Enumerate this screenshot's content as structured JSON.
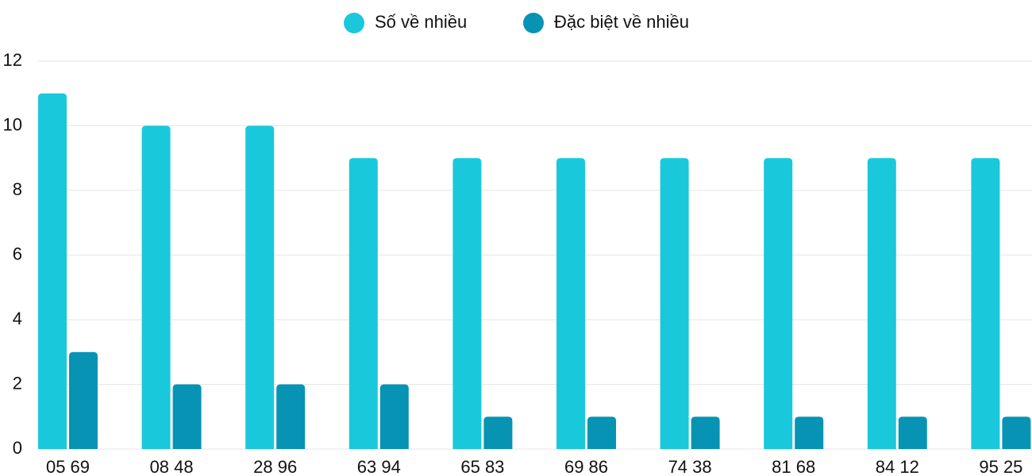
{
  "chart_data": {
    "type": "bar",
    "categories": [
      "05 69",
      "08 48",
      "28 96",
      "63 94",
      "65 83",
      "69 86",
      "74 38",
      "81 68",
      "84 12",
      "95 25"
    ],
    "series": [
      {
        "name": "Số về nhiều",
        "color": "#1ac8db",
        "values": [
          11,
          10,
          10,
          9,
          9,
          9,
          9,
          9,
          9,
          9
        ]
      },
      {
        "name": "Đặc biệt về nhiều",
        "color": "#0794b4",
        "values": [
          3,
          2,
          2,
          2,
          1,
          1,
          1,
          1,
          1,
          1
        ]
      }
    ],
    "ylim": [
      0,
      12
    ],
    "yticks": [
      0,
      2,
      4,
      6,
      8,
      10,
      12
    ],
    "grid": true,
    "legend": "top"
  }
}
